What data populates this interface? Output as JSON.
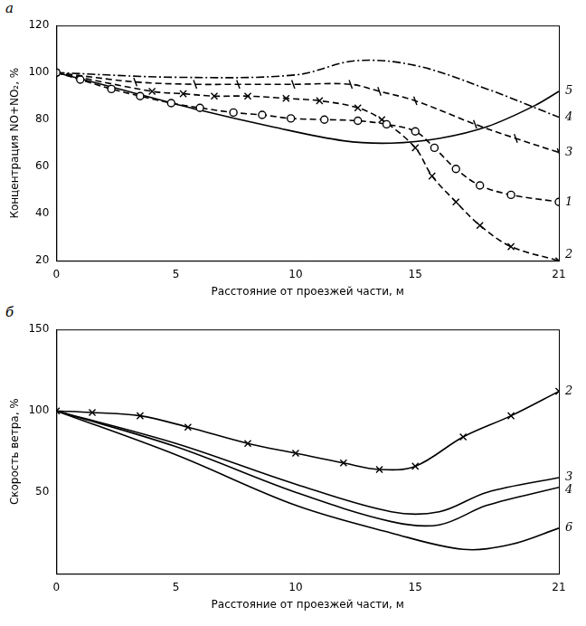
{
  "chart_data": [
    {
      "type": "line",
      "title": "а",
      "x_label": "Расстояние от проезжей части, м",
      "y_label": "Концентрация NO+NO₂, %",
      "xlim": [
        0,
        21
      ],
      "xticks": [
        0,
        5,
        10,
        15,
        21
      ],
      "ylim": [
        20,
        120
      ],
      "yticks": [
        20,
        40,
        60,
        80,
        100,
        120
      ],
      "grid": false,
      "series": [
        {
          "name": "1",
          "color": "#000000",
          "marker": "circle",
          "line_style": "dashed",
          "x": [
            0,
            1,
            2.3,
            3.5,
            4.8,
            6,
            7.4,
            8.6,
            9.8,
            11.2,
            12.6,
            13.8,
            15,
            15.8,
            16.7,
            17.7,
            19,
            21
          ],
          "values": [
            100,
            97,
            93,
            90,
            87,
            85,
            83,
            82,
            80.5,
            80,
            79.5,
            78,
            75,
            68,
            59,
            52,
            48,
            45
          ]
        },
        {
          "name": "2",
          "color": "#000000",
          "marker": "x",
          "line_style": "dashed",
          "x": [
            0,
            4,
            5.3,
            6.6,
            8,
            9.6,
            11,
            12.6,
            13.6,
            15,
            15.7,
            16.7,
            17.7,
            19,
            21
          ],
          "values": [
            100,
            92,
            91,
            90,
            90,
            89,
            88,
            85,
            80,
            68,
            56,
            45,
            35,
            26,
            20
          ]
        },
        {
          "name": "3",
          "color": "#000000",
          "marker": "bar",
          "line_style": "dashed",
          "x": [
            0,
            3.3,
            5.8,
            7.6,
            9.9,
            12.3,
            13.5,
            15,
            17.5,
            19.2,
            21
          ],
          "values": [
            100,
            96,
            95,
            95,
            95,
            95,
            92,
            88,
            78,
            72,
            66
          ]
        },
        {
          "name": "4",
          "color": "#000000",
          "marker": "none",
          "line_style": "dashdot",
          "x": [
            0,
            5,
            10,
            12.5,
            15,
            18,
            21
          ],
          "values": [
            100,
            98,
            99,
            105,
            103,
            93,
            81
          ]
        },
        {
          "name": "5",
          "color": "#000000",
          "marker": "none",
          "line_style": "solid",
          "x": [
            0,
            3,
            6,
            9,
            12,
            14,
            16,
            18,
            20,
            21
          ],
          "values": [
            100,
            92,
            84,
            77,
            71,
            70,
            72,
            77,
            86,
            92
          ]
        }
      ]
    },
    {
      "type": "line",
      "title": "б",
      "x_label": "Расстояние от проезжей части, м",
      "y_label": "Скорость ветра, %",
      "xlim": [
        0,
        21
      ],
      "xticks": [
        0,
        5,
        10,
        15,
        21
      ],
      "ylim": [
        0,
        150
      ],
      "yticks": [
        50,
        100,
        150
      ],
      "grid": false,
      "series": [
        {
          "name": "2",
          "color": "#000000",
          "marker": "x",
          "line_style": "solid",
          "x": [
            0,
            1.5,
            3.5,
            5.5,
            8,
            10,
            12,
            13.5,
            15,
            17,
            19,
            21
          ],
          "values": [
            100,
            99,
            97,
            90,
            80,
            74,
            68,
            64,
            66,
            84,
            97,
            112
          ]
        },
        {
          "name": "3",
          "color": "#000000",
          "marker": "none",
          "line_style": "solid",
          "x": [
            0,
            5,
            10,
            14,
            16,
            18,
            21
          ],
          "values": [
            100,
            80,
            55,
            38,
            38,
            50,
            59
          ]
        },
        {
          "name": "4",
          "color": "#000000",
          "marker": "none",
          "line_style": "solid",
          "x": [
            0,
            5,
            10,
            14,
            16,
            18,
            21
          ],
          "values": [
            100,
            78,
            50,
            32,
            30,
            42,
            53
          ]
        },
        {
          "name": "6",
          "color": "#000000",
          "marker": "none",
          "line_style": "solid",
          "x": [
            0,
            5,
            10,
            14,
            17,
            19,
            21
          ],
          "values": [
            100,
            73,
            42,
            25,
            15,
            18,
            28
          ]
        }
      ]
    }
  ]
}
